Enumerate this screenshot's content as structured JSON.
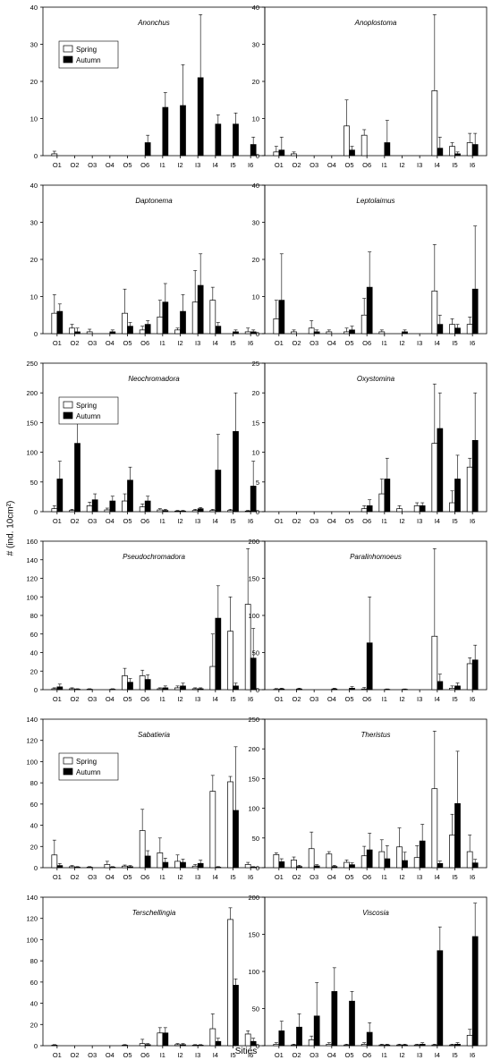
{
  "figure": {
    "ylabel": "# (ind. 10cm²)",
    "xlabel": "Sities",
    "legend": {
      "spring": "Spring",
      "autumn": "Autumn"
    }
  },
  "chart_data": [
    {
      "type": "bar",
      "title": "Anonchus",
      "categories": [
        "O1",
        "O2",
        "O3",
        "O4",
        "O5",
        "O6",
        "I1",
        "I2",
        "I3",
        "I4",
        "I5",
        "I6"
      ],
      "ylim": [
        0,
        40
      ],
      "yticks": [
        0,
        10,
        20,
        30,
        40
      ],
      "legend": true,
      "series": [
        {
          "name": "Spring",
          "values": [
            0.5,
            0,
            0,
            0,
            0,
            0,
            0,
            0,
            0,
            0,
            0,
            0
          ],
          "errors": [
            0.7,
            0,
            0,
            0,
            0,
            0,
            0,
            0,
            0,
            0,
            0,
            0
          ]
        },
        {
          "name": "Autumn",
          "values": [
            0,
            0,
            0,
            0,
            0,
            3.5,
            13,
            13.5,
            21,
            8.5,
            8.5,
            3
          ],
          "errors": [
            0,
            0,
            0,
            0,
            0,
            2,
            4,
            11,
            17,
            2.5,
            3,
            2
          ]
        }
      ]
    },
    {
      "type": "bar",
      "title": "Anoplostoma",
      "categories": [
        "O1",
        "O2",
        "O3",
        "O4",
        "O5",
        "O6",
        "I1",
        "I2",
        "I3",
        "I4",
        "I5",
        "I6"
      ],
      "ylim": [
        0,
        40
      ],
      "yticks": [
        0,
        10,
        20,
        30,
        40
      ],
      "legend": false,
      "series": [
        {
          "name": "Spring",
          "values": [
            1,
            0.5,
            0,
            0,
            8,
            5.5,
            0,
            0,
            0,
            17.5,
            2.5,
            3.5
          ],
          "errors": [
            1.5,
            0.5,
            0,
            0,
            7,
            1.5,
            0,
            0,
            0,
            20.5,
            1,
            2.5
          ]
        },
        {
          "name": "Autumn",
          "values": [
            1.5,
            0,
            0,
            0,
            1.5,
            0,
            3.5,
            0,
            0,
            2,
            0.5,
            3
          ],
          "errors": [
            3.5,
            0,
            0,
            0,
            1,
            0,
            6,
            0,
            0,
            3,
            0.5,
            3
          ]
        }
      ]
    },
    {
      "type": "bar",
      "title": "Daptonema",
      "categories": [
        "O1",
        "O2",
        "O3",
        "O4",
        "O5",
        "O6",
        "I1",
        "I2",
        "I3",
        "I4",
        "I5",
        "I6"
      ],
      "ylim": [
        0,
        40
      ],
      "yticks": [
        0,
        10,
        20,
        30,
        40
      ],
      "legend": false,
      "series": [
        {
          "name": "Spring",
          "values": [
            5.5,
            1.5,
            0.5,
            0,
            5.5,
            1,
            4.5,
            1,
            8.5,
            9,
            0,
            0.5
          ],
          "errors": [
            5,
            1,
            0.7,
            0,
            6.5,
            1,
            4.5,
            0.5,
            8.5,
            3.5,
            0,
            1
          ]
        },
        {
          "name": "Autumn",
          "values": [
            6,
            0.5,
            0,
            0.5,
            2,
            2.5,
            8.5,
            6,
            13,
            2,
            0.5,
            0.5
          ],
          "errors": [
            2,
            1,
            0,
            0.5,
            1,
            1,
            5,
            4.5,
            8.5,
            1,
            0.5,
            0.5
          ]
        }
      ]
    },
    {
      "type": "bar",
      "title": "Leptolaimus",
      "categories": [
        "O1",
        "O2",
        "O3",
        "O4",
        "O5",
        "O6",
        "I1",
        "I2",
        "I3",
        "I4",
        "I5",
        "I6"
      ],
      "ylim": [
        0,
        40
      ],
      "yticks": [
        0,
        10,
        20,
        30,
        40
      ],
      "legend": false,
      "series": [
        {
          "name": "Spring",
          "values": [
            4,
            0.5,
            1.5,
            0.5,
            0.5,
            5,
            0.5,
            0,
            0,
            11.5,
            2.5,
            2.5
          ],
          "errors": [
            5,
            0.5,
            2,
            0.5,
            1,
            4.5,
            0.5,
            0,
            0,
            12.5,
            1.5,
            2
          ]
        },
        {
          "name": "Autumn",
          "values": [
            9,
            0,
            0.5,
            0,
            1,
            12.5,
            0,
            0.5,
            0,
            2.5,
            1.5,
            12
          ],
          "errors": [
            12.5,
            0,
            0.5,
            0,
            1,
            9.5,
            0,
            0.5,
            0,
            2.5,
            1,
            17
          ]
        }
      ]
    },
    {
      "type": "bar",
      "title": "Neochromadora",
      "categories": [
        "O1",
        "O2",
        "O3",
        "O4",
        "O5",
        "O6",
        "I1",
        "I2",
        "I3",
        "I4",
        "I5",
        "I6"
      ],
      "ylim": [
        0,
        250
      ],
      "yticks": [
        0,
        50,
        100,
        150,
        200,
        250
      ],
      "legend": true,
      "series": [
        {
          "name": "Spring",
          "values": [
            5,
            2,
            10,
            3,
            18,
            8,
            3,
            1,
            2,
            2,
            2,
            1
          ],
          "errors": [
            5,
            2,
            6,
            3,
            12,
            5,
            2,
            1,
            2,
            2,
            2,
            1
          ]
        },
        {
          "name": "Autumn",
          "values": [
            55,
            115,
            20,
            18,
            53,
            18,
            2,
            1,
            5,
            70,
            135,
            43
          ],
          "errors": [
            30,
            40,
            10,
            8,
            22,
            8,
            2,
            1,
            2,
            60,
            65,
            42
          ]
        }
      ]
    },
    {
      "type": "bar",
      "title": "Oxystomina",
      "categories": [
        "O1",
        "O2",
        "O3",
        "O4",
        "O5",
        "O6",
        "I1",
        "I2",
        "I3",
        "I4",
        "I5",
        "I6"
      ],
      "ylim": [
        0,
        25
      ],
      "yticks": [
        0,
        5,
        10,
        15,
        20,
        25
      ],
      "legend": false,
      "series": [
        {
          "name": "Spring",
          "values": [
            0,
            0,
            0,
            0,
            0,
            0.5,
            3,
            0.5,
            1,
            11.5,
            1.5,
            7.5
          ],
          "errors": [
            0,
            0,
            0,
            0,
            0,
            0.5,
            2.5,
            0.5,
            0.5,
            10,
            2,
            1.5
          ]
        },
        {
          "name": "Autumn",
          "values": [
            0,
            0,
            0,
            0,
            0,
            1,
            5.5,
            0,
            1,
            14,
            5.5,
            12
          ],
          "errors": [
            0,
            0,
            0,
            0,
            0,
            1,
            3.5,
            0,
            0.5,
            6,
            4,
            8
          ]
        }
      ]
    },
    {
      "type": "bar",
      "title": "Pseudochromadora",
      "categories": [
        "O1",
        "O2",
        "O3",
        "O4",
        "O5",
        "O6",
        "I1",
        "I2",
        "I3",
        "I4",
        "I5",
        "I6"
      ],
      "ylim": [
        0,
        160
      ],
      "yticks": [
        0,
        20,
        40,
        60,
        80,
        100,
        120,
        140,
        160
      ],
      "legend": false,
      "series": [
        {
          "name": "Spring",
          "values": [
            1,
            1,
            0.5,
            0,
            15,
            15,
            1,
            2,
            1,
            25,
            63,
            92
          ],
          "errors": [
            1,
            1,
            0.5,
            0,
            8,
            6,
            1,
            2,
            1,
            35,
            37,
            60
          ]
        },
        {
          "name": "Autumn",
          "values": [
            3,
            0.5,
            0,
            0.5,
            8,
            11,
            2,
            4,
            1,
            77,
            4,
            34
          ],
          "errors": [
            3,
            0.5,
            0,
            0.5,
            4,
            5,
            2,
            3,
            1,
            35,
            3,
            32
          ]
        }
      ]
    },
    {
      "type": "bar",
      "title": "Paralinhomoeus",
      "categories": [
        "O1",
        "O2",
        "O3",
        "O4",
        "O5",
        "O6",
        "I1",
        "I2",
        "I3",
        "I4",
        "I5",
        "I6"
      ],
      "ylim": [
        0,
        200
      ],
      "yticks": [
        0,
        50,
        100,
        150,
        200
      ],
      "legend": false,
      "series": [
        {
          "name": "Spring",
          "values": [
            0.5,
            0,
            0,
            0,
            0,
            1,
            0,
            0,
            0,
            72,
            2,
            35
          ],
          "errors": [
            1,
            0,
            0,
            0,
            0,
            2,
            0,
            0,
            0,
            118,
            3,
            8
          ]
        },
        {
          "name": "Autumn",
          "values": [
            1,
            1,
            0,
            1,
            2,
            63,
            0.5,
            0.5,
            0,
            11,
            5,
            40
          ],
          "errors": [
            1,
            1,
            0,
            1,
            2,
            62,
            0.5,
            0.5,
            0,
            10,
            4,
            20
          ]
        }
      ]
    },
    {
      "type": "bar",
      "title": "Sabatieria",
      "categories": [
        "O1",
        "O2",
        "O3",
        "O4",
        "O5",
        "O6",
        "I1",
        "I2",
        "I3",
        "I4",
        "I5",
        "I6"
      ],
      "ylim": [
        0,
        140
      ],
      "yticks": [
        0,
        20,
        40,
        60,
        80,
        100,
        120,
        140
      ],
      "legend": true,
      "series": [
        {
          "name": "Spring",
          "values": [
            12,
            1,
            0.5,
            3,
            1.5,
            35,
            14,
            6,
            1.5,
            72,
            81,
            3
          ],
          "errors": [
            14,
            1,
            0.5,
            3,
            1,
            20,
            14,
            6,
            1.5,
            15,
            5,
            2
          ]
        },
        {
          "name": "Autumn",
          "values": [
            2,
            0.5,
            0,
            0.5,
            1,
            11,
            5,
            5,
            4,
            0.5,
            54,
            0.5
          ],
          "errors": [
            2,
            0.5,
            0,
            0.5,
            1,
            5,
            4,
            3,
            3,
            0.5,
            60,
            0.5
          ]
        }
      ]
    },
    {
      "type": "bar",
      "title": "Theristus",
      "categories": [
        "O1",
        "O2",
        "O3",
        "O4",
        "O5",
        "O6",
        "I1",
        "I2",
        "I3",
        "I4",
        "I5",
        "I6"
      ],
      "ylim": [
        0,
        250
      ],
      "yticks": [
        0,
        50,
        100,
        150,
        200,
        250
      ],
      "legend": false,
      "series": [
        {
          "name": "Spring",
          "values": [
            22,
            13,
            32,
            23,
            9,
            20,
            27,
            35,
            17,
            133,
            55,
            27
          ],
          "errors": [
            3,
            5,
            28,
            4,
            4,
            16,
            20,
            32,
            20,
            97,
            35,
            28
          ]
        },
        {
          "name": "Autumn",
          "values": [
            10,
            2,
            3,
            2,
            5,
            30,
            15,
            12,
            45,
            7,
            108,
            8
          ],
          "errors": [
            5,
            2,
            2,
            2,
            3,
            28,
            22,
            14,
            28,
            4,
            88,
            6
          ]
        }
      ]
    },
    {
      "type": "bar",
      "title": "Terschellingia",
      "categories": [
        "O1",
        "O2",
        "O3",
        "O4",
        "O5",
        "O6",
        "I1",
        "I2",
        "I3",
        "I4",
        "I5",
        "I6"
      ],
      "ylim": [
        0,
        140
      ],
      "yticks": [
        0,
        20,
        40,
        60,
        80,
        100,
        120,
        140
      ],
      "legend": false,
      "series": [
        {
          "name": "Spring",
          "values": [
            0.5,
            0,
            0,
            0,
            0.5,
            2,
            12,
            1,
            0.5,
            16,
            119,
            11
          ],
          "errors": [
            0.5,
            0,
            0,
            0,
            0.5,
            4,
            5,
            1,
            0.5,
            14,
            11,
            3
          ]
        },
        {
          "name": "Autumn",
          "values": [
            0,
            0,
            0,
            0,
            0,
            1,
            12,
            1,
            0.5,
            4,
            57,
            4
          ],
          "errors": [
            0,
            0,
            0,
            0,
            0,
            1,
            5,
            1,
            0.5,
            3,
            6,
            3
          ]
        }
      ]
    },
    {
      "type": "bar",
      "title": "Viscosia",
      "categories": [
        "O1",
        "O2",
        "O3",
        "O4",
        "O5",
        "O6",
        "I1",
        "I2",
        "I3",
        "I4",
        "I5",
        "I6"
      ],
      "ylim": [
        0,
        200
      ],
      "yticks": [
        0,
        50,
        100,
        150,
        200
      ],
      "legend": false,
      "series": [
        {
          "name": "Spring",
          "values": [
            2,
            1,
            8,
            2,
            1,
            2,
            1,
            1,
            1,
            1,
            1,
            14
          ],
          "errors": [
            2,
            1,
            5,
            2,
            1,
            2,
            1,
            1,
            1,
            1,
            1,
            8
          ]
        },
        {
          "name": "Autumn",
          "values": [
            20,
            25,
            40,
            73,
            60,
            18,
            1,
            1,
            2,
            128,
            2,
            147
          ],
          "errors": [
            13,
            18,
            45,
            32,
            13,
            13,
            1,
            1,
            2,
            32,
            2,
            45
          ]
        }
      ]
    }
  ]
}
